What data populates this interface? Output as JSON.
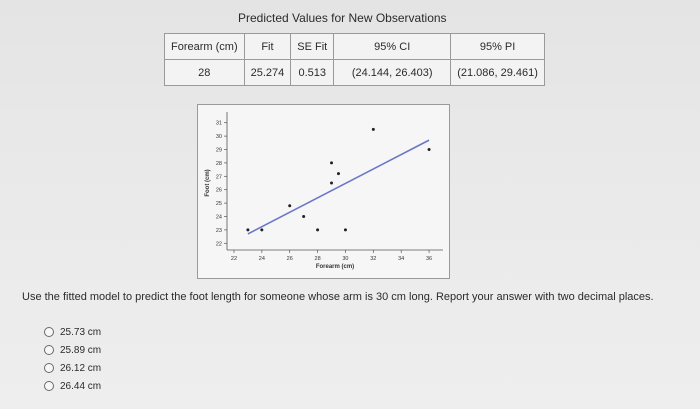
{
  "title": "Predicted Values for New Observations",
  "table": {
    "headers": [
      "Forearm (cm)",
      "Fit",
      "SE Fit",
      "95% CI",
      "95% PI"
    ],
    "row": [
      "28",
      "25.274",
      "0.513",
      "(24.144, 26.403)",
      "(21.086, 29.461)"
    ]
  },
  "chart_data": {
    "type": "scatter",
    "xlabel": "Forearm (cm)",
    "ylabel": "Foot (cm)",
    "xlim": [
      21.5,
      37
    ],
    "ylim": [
      21.5,
      31.5
    ],
    "x_ticks": [
      22,
      24,
      26,
      28,
      30,
      32,
      34,
      36
    ],
    "y_ticks": [
      22,
      23,
      24,
      25,
      26,
      27,
      28,
      29,
      30,
      31
    ],
    "points": [
      {
        "x": 23,
        "y": 23
      },
      {
        "x": 24,
        "y": 23
      },
      {
        "x": 26,
        "y": 24.8
      },
      {
        "x": 27,
        "y": 24
      },
      {
        "x": 28,
        "y": 23
      },
      {
        "x": 29,
        "y": 26.5
      },
      {
        "x": 29,
        "y": 28
      },
      {
        "x": 29.5,
        "y": 27.2
      },
      {
        "x": 30,
        "y": 23
      },
      {
        "x": 32,
        "y": 30.5
      },
      {
        "x": 36,
        "y": 29
      }
    ],
    "fit_line": {
      "x": [
        23,
        36
      ],
      "y": [
        22.7,
        29.7
      ]
    },
    "colors": {
      "line": "#6b76c8",
      "points": "#222222"
    }
  },
  "question": "Use the fitted model to predict the foot length for someone whose arm is 30 cm long. Report your answer with two decimal places.",
  "options": [
    "25.73 cm",
    "25.89 cm",
    "26.12 cm",
    "26.44 cm"
  ]
}
